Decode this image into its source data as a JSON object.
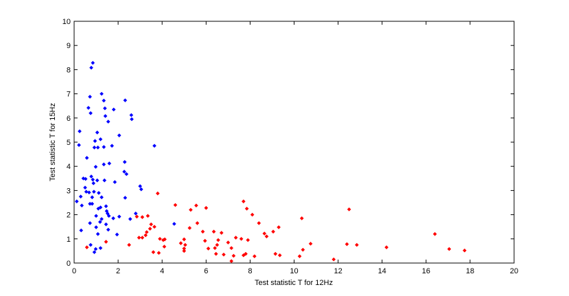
{
  "chart_data": {
    "type": "scatter",
    "xlabel": "Test statistic T for 12Hz",
    "ylabel": "Test statistic T for 15Hz",
    "xlim": [
      0,
      20
    ],
    "ylim": [
      0,
      10
    ],
    "xticks": [
      "0",
      "2",
      "4",
      "6",
      "8",
      "10",
      "12",
      "14",
      "16",
      "18",
      "20"
    ],
    "yticks": [
      "0",
      "1",
      "2",
      "3",
      "4",
      "5",
      "6",
      "7",
      "8",
      "9",
      "10"
    ],
    "grid": false,
    "series": [
      {
        "color": "#0000ff",
        "points": [
          [
            0.85,
            8.28
          ],
          [
            0.78,
            8.08
          ],
          [
            0.72,
            6.88
          ],
          [
            1.25,
            7.0
          ],
          [
            2.32,
            6.73
          ],
          [
            0.65,
            6.42
          ],
          [
            1.35,
            6.72
          ],
          [
            0.75,
            6.2
          ],
          [
            1.8,
            6.35
          ],
          [
            2.6,
            6.12
          ],
          [
            2.62,
            5.95
          ],
          [
            1.4,
            6.4
          ],
          [
            1.42,
            6.08
          ],
          [
            1.55,
            5.85
          ],
          [
            0.25,
            5.45
          ],
          [
            1.05,
            5.4
          ],
          [
            2.05,
            5.28
          ],
          [
            0.22,
            4.88
          ],
          [
            0.95,
            5.05
          ],
          [
            1.2,
            5.12
          ],
          [
            1.35,
            4.8
          ],
          [
            1.72,
            4.85
          ],
          [
            0.92,
            4.78
          ],
          [
            1.08,
            4.78
          ],
          [
            3.65,
            4.85
          ],
          [
            0.58,
            4.35
          ],
          [
            2.3,
            4.18
          ],
          [
            1.6,
            4.12
          ],
          [
            1.35,
            4.08
          ],
          [
            0.98,
            3.98
          ],
          [
            2.28,
            3.78
          ],
          [
            2.38,
            3.68
          ],
          [
            0.78,
            3.58
          ],
          [
            0.85,
            3.45
          ],
          [
            0.52,
            3.48
          ],
          [
            0.42,
            3.5
          ],
          [
            1.05,
            3.42
          ],
          [
            1.38,
            3.42
          ],
          [
            1.85,
            3.35
          ],
          [
            0.88,
            3.3
          ],
          [
            0.5,
            3.12
          ],
          [
            3.0,
            3.18
          ],
          [
            3.05,
            3.05
          ],
          [
            0.55,
            2.95
          ],
          [
            0.68,
            2.92
          ],
          [
            0.9,
            2.95
          ],
          [
            1.12,
            2.9
          ],
          [
            0.3,
            2.75
          ],
          [
            0.82,
            2.72
          ],
          [
            1.25,
            2.72
          ],
          [
            2.32,
            2.7
          ],
          [
            0.12,
            2.55
          ],
          [
            0.72,
            2.45
          ],
          [
            0.82,
            2.45
          ],
          [
            0.35,
            2.38
          ],
          [
            1.45,
            2.35
          ],
          [
            1.2,
            2.3
          ],
          [
            1.1,
            2.25
          ],
          [
            1.48,
            2.15
          ],
          [
            1.52,
            2.05
          ],
          [
            2.8,
            2.05
          ],
          [
            1.0,
            1.95
          ],
          [
            1.58,
            1.95
          ],
          [
            2.05,
            1.92
          ],
          [
            1.25,
            1.82
          ],
          [
            1.78,
            1.85
          ],
          [
            2.55,
            1.82
          ],
          [
            1.18,
            1.7
          ],
          [
            0.72,
            1.65
          ],
          [
            1.45,
            1.6
          ],
          [
            4.55,
            1.62
          ],
          [
            1.0,
            1.48
          ],
          [
            1.55,
            1.38
          ],
          [
            0.32,
            1.35
          ],
          [
            1.08,
            1.2
          ],
          [
            1.95,
            1.18
          ],
          [
            0.75,
            0.75
          ],
          [
            1.2,
            0.62
          ],
          [
            0.98,
            0.58
          ],
          [
            0.92,
            0.45
          ]
        ]
      },
      {
        "color": "#ff0000",
        "points": [
          [
            3.8,
            2.88
          ],
          [
            4.6,
            2.4
          ],
          [
            5.55,
            2.38
          ],
          [
            6.0,
            2.28
          ],
          [
            5.3,
            2.2
          ],
          [
            7.7,
            2.55
          ],
          [
            12.5,
            2.22
          ],
          [
            7.85,
            2.25
          ],
          [
            3.1,
            1.9
          ],
          [
            3.35,
            1.95
          ],
          [
            2.85,
            1.92
          ],
          [
            8.1,
            2.0
          ],
          [
            10.35,
            1.85
          ],
          [
            5.6,
            1.65
          ],
          [
            3.5,
            1.6
          ],
          [
            3.65,
            1.5
          ],
          [
            3.45,
            1.42
          ],
          [
            3.3,
            1.28
          ],
          [
            5.25,
            1.45
          ],
          [
            8.4,
            1.65
          ],
          [
            9.3,
            1.48
          ],
          [
            3.25,
            1.15
          ],
          [
            3.1,
            1.05
          ],
          [
            5.85,
            1.3
          ],
          [
            6.35,
            1.3
          ],
          [
            6.7,
            1.25
          ],
          [
            8.65,
            1.22
          ],
          [
            9.05,
            1.3
          ],
          [
            3.9,
            1.0
          ],
          [
            4.05,
            0.95
          ],
          [
            4.12,
            0.98
          ],
          [
            5.0,
            0.98
          ],
          [
            5.95,
            0.92
          ],
          [
            6.55,
            0.95
          ],
          [
            7.35,
            1.05
          ],
          [
            7.6,
            1.0
          ],
          [
            7.9,
            0.95
          ],
          [
            8.75,
            1.1
          ],
          [
            2.95,
            1.05
          ],
          [
            1.45,
            0.88
          ],
          [
            4.85,
            0.82
          ],
          [
            5.05,
            0.75
          ],
          [
            6.5,
            0.75
          ],
          [
            2.5,
            0.75
          ],
          [
            7.0,
            0.85
          ],
          [
            10.75,
            0.8
          ],
          [
            12.4,
            0.78
          ],
          [
            12.85,
            0.75
          ],
          [
            0.58,
            0.65
          ],
          [
            4.1,
            0.68
          ],
          [
            5.0,
            0.6
          ],
          [
            6.1,
            0.6
          ],
          [
            6.4,
            0.62
          ],
          [
            7.15,
            0.62
          ],
          [
            10.4,
            0.55
          ],
          [
            14.2,
            0.65
          ],
          [
            16.4,
            1.2
          ],
          [
            17.05,
            0.58
          ],
          [
            17.75,
            0.52
          ],
          [
            3.6,
            0.45
          ],
          [
            3.85,
            0.42
          ],
          [
            5.0,
            0.5
          ],
          [
            6.45,
            0.38
          ],
          [
            6.8,
            0.35
          ],
          [
            7.8,
            0.38
          ],
          [
            8.2,
            0.28
          ],
          [
            9.15,
            0.38
          ],
          [
            9.35,
            0.32
          ],
          [
            10.25,
            0.28
          ],
          [
            7.25,
            0.3
          ],
          [
            7.7,
            0.32
          ],
          [
            11.8,
            0.15
          ],
          [
            7.15,
            0.08
          ]
        ]
      }
    ]
  }
}
